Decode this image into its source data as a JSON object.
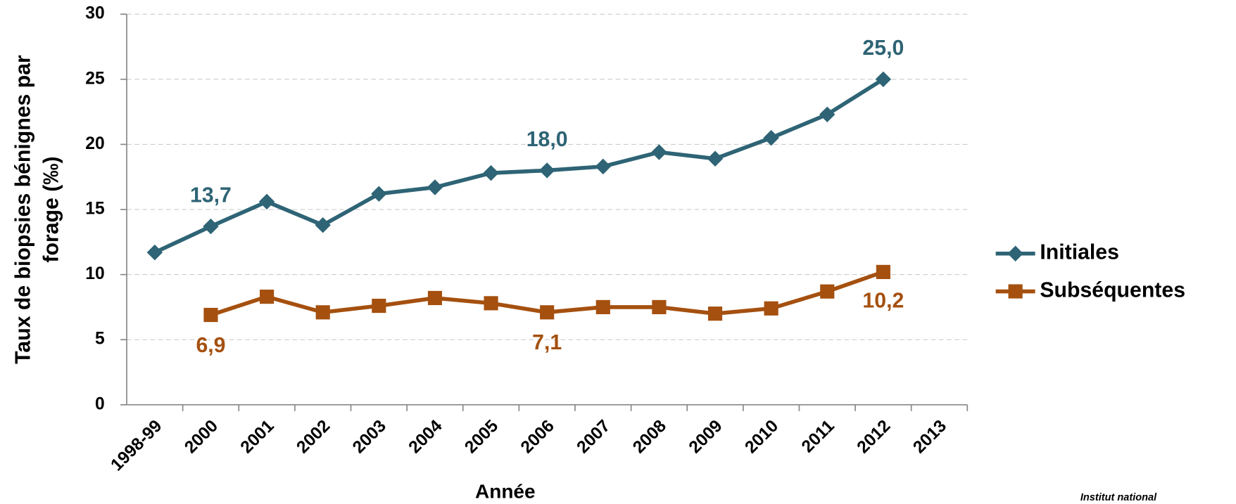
{
  "chart_data": {
    "type": "line",
    "xlabel": "Année",
    "ylabel": [
      "Taux de biopsies bénignes par",
      "forage (‰)"
    ],
    "categories": [
      "1998-99",
      "2000",
      "2001",
      "2002",
      "2003",
      "2004",
      "2005",
      "2006",
      "2007",
      "2008",
      "2009",
      "2010",
      "2011",
      "2012",
      "2013"
    ],
    "series": [
      {
        "name": "Initiales",
        "color": "#2e6475",
        "marker": "diamond",
        "values": [
          11.7,
          13.7,
          15.6,
          13.8,
          16.2,
          16.7,
          17.8,
          18.0,
          18.3,
          19.4,
          18.9,
          20.5,
          22.3,
          25.0,
          null
        ],
        "value_labels": [
          null,
          "13,7",
          null,
          null,
          null,
          null,
          null,
          "18,0",
          null,
          null,
          null,
          null,
          null,
          "25,0",
          null
        ]
      },
      {
        "name": "Subséquentes",
        "color": "#a5500f",
        "marker": "square",
        "values": [
          null,
          6.9,
          8.3,
          7.1,
          7.6,
          8.2,
          7.8,
          7.1,
          7.5,
          7.5,
          7.0,
          7.4,
          8.7,
          10.2,
          null
        ],
        "value_labels": [
          null,
          "6,9",
          null,
          null,
          null,
          null,
          null,
          "7,1",
          null,
          null,
          null,
          null,
          null,
          "10,2",
          null
        ]
      }
    ],
    "ylim": [
      0,
      30
    ],
    "yticks": [
      0,
      5,
      10,
      15,
      20,
      25,
      30
    ],
    "grid": true,
    "legend": "right",
    "footer": "Institut national"
  }
}
